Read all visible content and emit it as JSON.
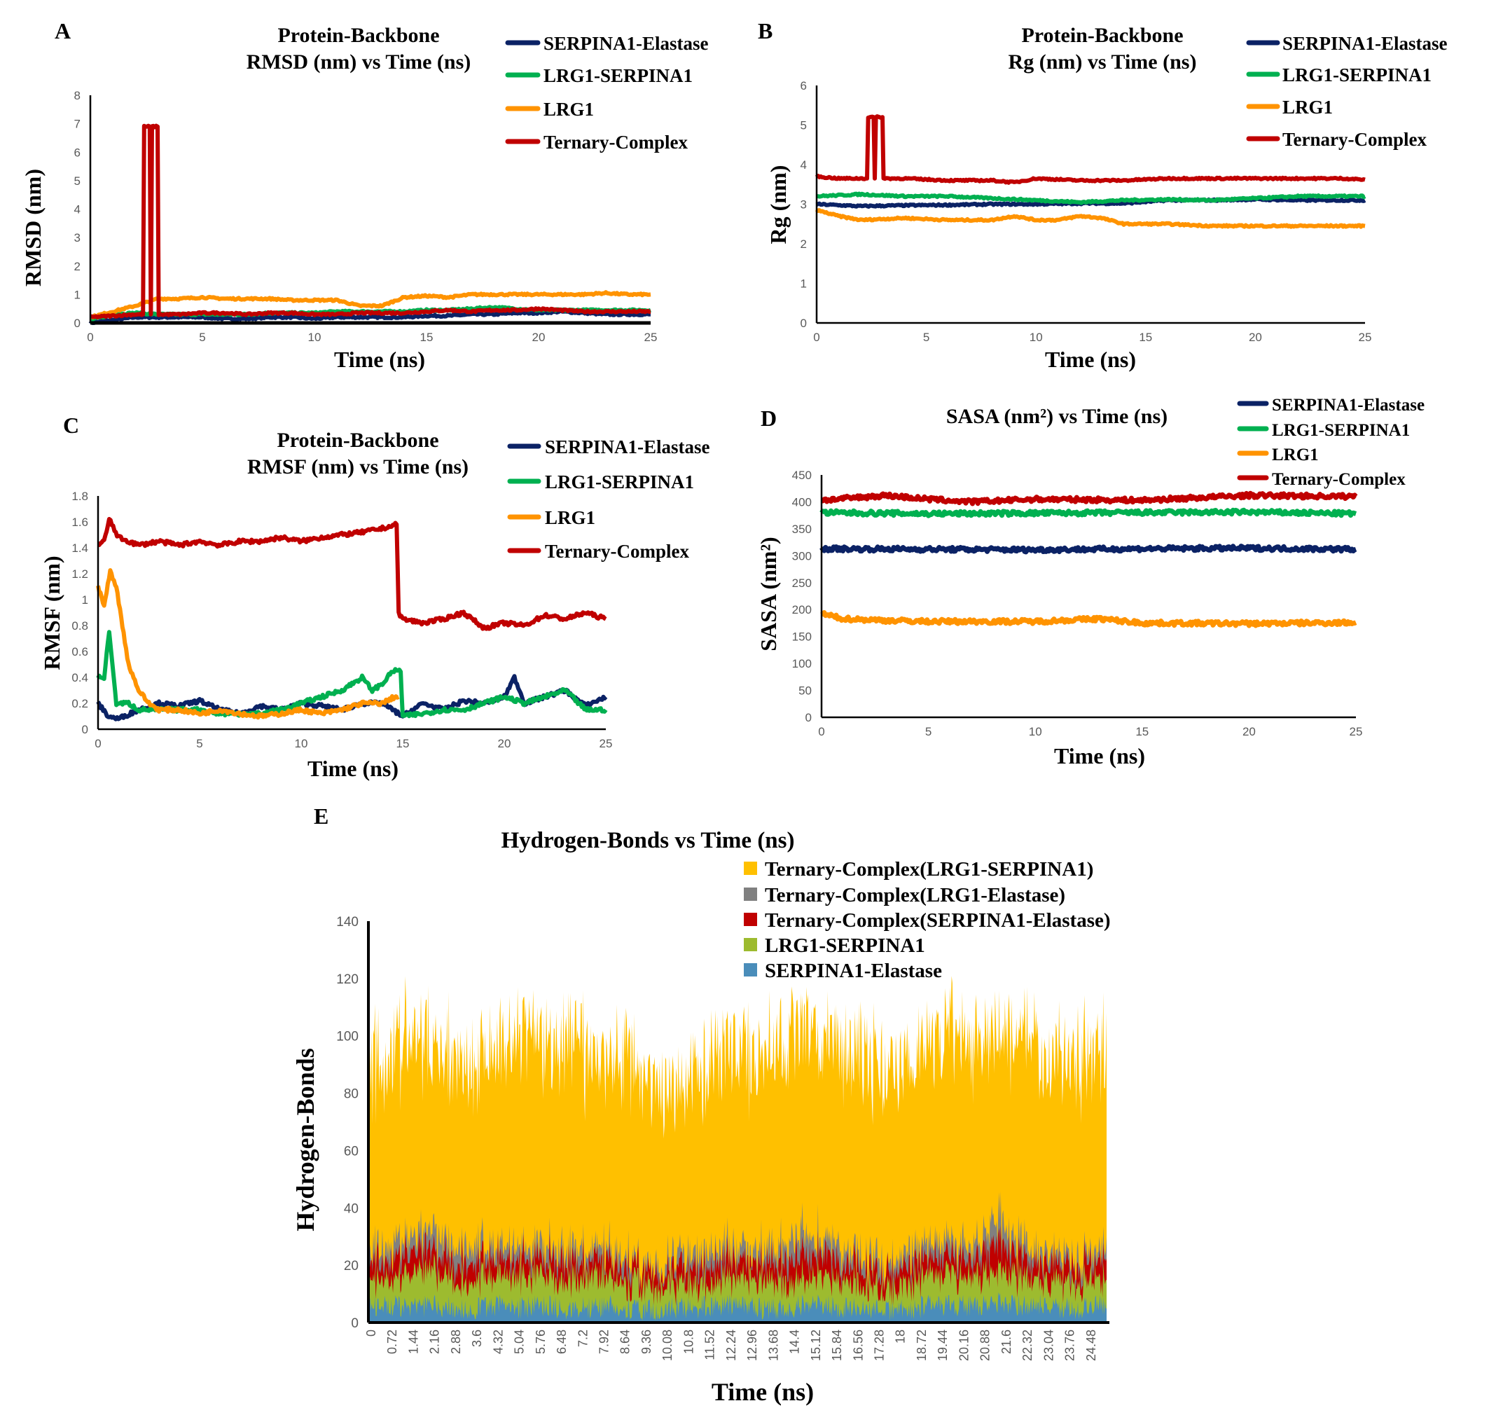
{
  "chart_data": [
    {
      "id": "A",
      "type": "line",
      "panel_label": "A",
      "title_line1": "Protein-Backbone",
      "title_line2": "RMSD (nm) vs Time (ns)",
      "xlabel": "Time (ns)",
      "ylabel": "RMSD (nm)",
      "xlim": [
        0,
        25
      ],
      "ylim": [
        0,
        8
      ],
      "xticks": [
        0,
        5,
        10,
        15,
        20,
        25
      ],
      "yticks": [
        0,
        1,
        2,
        3,
        4,
        5,
        6,
        7,
        8
      ],
      "legend_position": "top-right",
      "series": [
        {
          "name": "SERPINA1-Elastase",
          "color": "#0b2265",
          "x": [
            0,
            1,
            2,
            3,
            4,
            5,
            6,
            7,
            8,
            9,
            10,
            11,
            12,
            13,
            14,
            15,
            16,
            17,
            18,
            19,
            20,
            21,
            22,
            23,
            24,
            25
          ],
          "y": [
            0,
            0.1,
            0.2,
            0.2,
            0.2,
            0.2,
            0.15,
            0.15,
            0.2,
            0.2,
            0.15,
            0.2,
            0.2,
            0.2,
            0.2,
            0.25,
            0.25,
            0.3,
            0.3,
            0.35,
            0.35,
            0.4,
            0.35,
            0.3,
            0.3,
            0.3
          ]
        },
        {
          "name": "LRG1-SERPINA1",
          "color": "#00b050",
          "x": [
            0,
            1,
            2,
            3,
            4,
            5,
            6,
            7,
            8,
            9,
            10,
            11,
            12,
            13,
            14,
            15,
            16,
            17,
            18,
            19,
            20,
            21,
            22,
            23,
            24,
            25
          ],
          "y": [
            0.1,
            0.3,
            0.35,
            0.3,
            0.3,
            0.3,
            0.3,
            0.3,
            0.35,
            0.35,
            0.35,
            0.4,
            0.4,
            0.4,
            0.4,
            0.45,
            0.45,
            0.5,
            0.55,
            0.5,
            0.45,
            0.45,
            0.45,
            0.45,
            0.45,
            0.45
          ]
        },
        {
          "name": "LRG1",
          "color": "#ff9300",
          "x": [
            0,
            1,
            2,
            3,
            4,
            5,
            6,
            7,
            8,
            9,
            10,
            11,
            12,
            13,
            14,
            15,
            16,
            17,
            18,
            19,
            20,
            21,
            22,
            23,
            24,
            25
          ],
          "y": [
            0.2,
            0.4,
            0.6,
            0.85,
            0.85,
            0.9,
            0.85,
            0.85,
            0.85,
            0.8,
            0.8,
            0.8,
            0.6,
            0.6,
            0.9,
            0.95,
            0.9,
            1.0,
            1.0,
            1.0,
            1.0,
            1.0,
            1.0,
            1.05,
            1.0,
            1.0
          ]
        },
        {
          "name": "Ternary-Complex",
          "color": "#c00000",
          "x": [
            0,
            1,
            2,
            2.35,
            2.4,
            2.65,
            2.7,
            2.75,
            3.0,
            3.05,
            4,
            5,
            6,
            7,
            8,
            9,
            10,
            11,
            12,
            13,
            14,
            15,
            16,
            17,
            18,
            19,
            20,
            21,
            22,
            23,
            24,
            25
          ],
          "y": [
            0.2,
            0.25,
            0.3,
            0.3,
            6.9,
            6.9,
            0.3,
            6.9,
            6.9,
            0.3,
            0.3,
            0.35,
            0.35,
            0.3,
            0.35,
            0.35,
            0.3,
            0.3,
            0.35,
            0.35,
            0.35,
            0.4,
            0.45,
            0.4,
            0.45,
            0.45,
            0.5,
            0.45,
            0.4,
            0.4,
            0.4,
            0.4
          ]
        }
      ]
    },
    {
      "id": "B",
      "type": "line",
      "panel_label": "B",
      "title_line1": "Protein-Backbone",
      "title_line2": "Rg (nm) vs Time (ns)",
      "xlabel": "Time (ns)",
      "ylabel": "Rg (nm)",
      "xlim": [
        0,
        25
      ],
      "ylim": [
        0,
        6
      ],
      "xticks": [
        0,
        5,
        10,
        15,
        20,
        25
      ],
      "yticks": [
        0,
        1,
        2,
        3,
        4,
        5,
        6
      ],
      "legend_position": "top-right",
      "series": [
        {
          "name": "SERPINA1-Elastase",
          "color": "#0b2265",
          "x": [
            0,
            2,
            4,
            6,
            8,
            10,
            12,
            14,
            16,
            18,
            20,
            22,
            24,
            25
          ],
          "y": [
            3.0,
            2.95,
            2.97,
            2.98,
            3.0,
            3.0,
            3.02,
            3.02,
            3.1,
            3.1,
            3.12,
            3.1,
            3.1,
            3.1
          ]
        },
        {
          "name": "LRG1-SERPINA1",
          "color": "#00b050",
          "x": [
            0,
            2,
            4,
            6,
            8,
            10,
            12,
            14,
            16,
            18,
            20,
            22,
            24,
            25
          ],
          "y": [
            3.2,
            3.25,
            3.2,
            3.2,
            3.15,
            3.1,
            3.05,
            3.1,
            3.12,
            3.1,
            3.15,
            3.2,
            3.2,
            3.2
          ]
        },
        {
          "name": "LRG1",
          "color": "#ff9300",
          "x": [
            0,
            1,
            2,
            4,
            6,
            8,
            9,
            10,
            11,
            12,
            13,
            14,
            16,
            18,
            20,
            22,
            24,
            25
          ],
          "y": [
            2.85,
            2.7,
            2.6,
            2.65,
            2.6,
            2.6,
            2.7,
            2.6,
            2.6,
            2.7,
            2.65,
            2.5,
            2.5,
            2.45,
            2.45,
            2.45,
            2.45,
            2.45
          ]
        },
        {
          "name": "Ternary-Complex",
          "color": "#c00000",
          "x": [
            0,
            1,
            2,
            2.3,
            2.35,
            2.6,
            2.65,
            2.7,
            3.0,
            3.05,
            4,
            6,
            8,
            9,
            10,
            12,
            14,
            16,
            18,
            20,
            22,
            24,
            25
          ],
          "y": [
            3.7,
            3.65,
            3.65,
            3.65,
            5.2,
            5.2,
            3.65,
            5.2,
            5.2,
            3.65,
            3.65,
            3.6,
            3.6,
            3.55,
            3.65,
            3.6,
            3.6,
            3.65,
            3.65,
            3.65,
            3.65,
            3.65,
            3.62
          ]
        }
      ]
    },
    {
      "id": "C",
      "type": "line",
      "panel_label": "C",
      "title_line1": "Protein-Backbone",
      "title_line2": "RMSF (nm) vs Time (ns)",
      "xlabel": "Time (ns)",
      "ylabel": "RMSF (nm)",
      "xlim": [
        0,
        25
      ],
      "ylim": [
        0,
        1.8
      ],
      "xticks": [
        0,
        5,
        10,
        15,
        20,
        25
      ],
      "yticks": [
        0,
        0.2,
        0.4,
        0.6,
        0.8,
        1,
        1.2,
        1.4,
        1.6,
        1.8
      ],
      "legend_position": "top-right",
      "series": [
        {
          "name": "SERPINA1-Elastase",
          "color": "#0b2265",
          "x": [
            0,
            0.5,
            1,
            2,
            3,
            4,
            5,
            6,
            7,
            8,
            9,
            10,
            11,
            12,
            13,
            14,
            15,
            16,
            17,
            18,
            19,
            20,
            20.5,
            21,
            22,
            23,
            24,
            25
          ],
          "y": [
            0.2,
            0.1,
            0.08,
            0.15,
            0.2,
            0.18,
            0.22,
            0.15,
            0.12,
            0.18,
            0.15,
            0.2,
            0.18,
            0.15,
            0.2,
            0.2,
            0.1,
            0.2,
            0.15,
            0.22,
            0.2,
            0.25,
            0.4,
            0.2,
            0.25,
            0.3,
            0.18,
            0.25
          ]
        },
        {
          "name": "LRG1-SERPINA1",
          "color": "#00b050",
          "x": [
            0,
            0.3,
            0.55,
            0.9,
            1.5,
            2,
            3,
            4,
            5,
            6,
            7,
            8,
            9,
            10,
            11,
            12,
            13,
            13.5,
            14,
            14.5,
            14.9,
            15,
            16,
            17,
            18,
            19,
            20,
            21,
            22,
            23,
            24,
            25
          ],
          "y": [
            0.4,
            0.4,
            0.75,
            0.2,
            0.2,
            0.15,
            0.15,
            0.15,
            0.15,
            0.12,
            0.12,
            0.12,
            0.15,
            0.2,
            0.25,
            0.3,
            0.4,
            0.3,
            0.35,
            0.45,
            0.45,
            0.1,
            0.12,
            0.15,
            0.15,
            0.2,
            0.25,
            0.2,
            0.25,
            0.3,
            0.15,
            0.15
          ]
        },
        {
          "name": "LRG1",
          "color": "#ff9300",
          "x": [
            0,
            0.3,
            0.6,
            0.9,
            1.2,
            1.5,
            2,
            2.5,
            3,
            4,
            5,
            6,
            7,
            8,
            9,
            10,
            11,
            12,
            13,
            14,
            14.6,
            14.8
          ],
          "y": [
            1.1,
            0.95,
            1.22,
            1.1,
            0.8,
            0.5,
            0.3,
            0.2,
            0.15,
            0.15,
            0.12,
            0.15,
            0.12,
            0.1,
            0.12,
            0.15,
            0.12,
            0.15,
            0.2,
            0.2,
            0.25,
            0.25
          ]
        },
        {
          "name": "Ternary-Complex",
          "color": "#c00000",
          "x": [
            0,
            0.3,
            0.55,
            1,
            2,
            3,
            4,
            5,
            6,
            7,
            8,
            9,
            10,
            11,
            12,
            13,
            14,
            14.7,
            14.8,
            15,
            16,
            17,
            18,
            19,
            20,
            21,
            22,
            23,
            24,
            25
          ],
          "y": [
            1.42,
            1.45,
            1.62,
            1.48,
            1.42,
            1.45,
            1.42,
            1.45,
            1.42,
            1.45,
            1.45,
            1.48,
            1.45,
            1.48,
            1.5,
            1.52,
            1.55,
            1.58,
            0.9,
            0.85,
            0.82,
            0.85,
            0.9,
            0.78,
            0.82,
            0.8,
            0.88,
            0.85,
            0.9,
            0.85
          ]
        }
      ]
    },
    {
      "id": "D",
      "type": "line",
      "panel_label": "D",
      "title_line1": "SASA (nm²) vs Time (ns)",
      "xlabel": "Time (ns)",
      "ylabel": "SASA (nm²)",
      "xlim": [
        0,
        25
      ],
      "ylim": [
        0,
        450
      ],
      "xticks": [
        0,
        5,
        10,
        15,
        20,
        25
      ],
      "yticks": [
        0,
        50,
        100,
        150,
        200,
        250,
        300,
        350,
        400,
        450
      ],
      "legend_position": "top-right",
      "series": [
        {
          "name": "SERPINA1-Elastase",
          "color": "#0b2265",
          "x": [
            0,
            5,
            10,
            15,
            20,
            25
          ],
          "y": [
            313,
            312,
            311,
            313,
            314,
            312
          ]
        },
        {
          "name": "LRG1-SERPINA1",
          "color": "#00b050",
          "x": [
            0,
            5,
            10,
            15,
            20,
            25
          ],
          "y": [
            380,
            378,
            379,
            380,
            381,
            378
          ]
        },
        {
          "name": "LRG1",
          "color": "#ff9300",
          "x": [
            0,
            1,
            3,
            5,
            10,
            13,
            15,
            20,
            25
          ],
          "y": [
            192,
            183,
            180,
            178,
            178,
            183,
            175,
            174,
            176
          ]
        },
        {
          "name": "Ternary-Complex",
          "color": "#c00000",
          "x": [
            0,
            3,
            5,
            7,
            10,
            15,
            20,
            25
          ],
          "y": [
            403,
            412,
            405,
            400,
            405,
            403,
            412,
            410
          ]
        }
      ]
    },
    {
      "id": "E",
      "type": "area",
      "stacked": true,
      "panel_label": "E",
      "title": "Hydrogen-Bonds vs Time (ns)",
      "xlabel": "Time (ns)",
      "ylabel": "Hydrogen-Bonds",
      "ylim": [
        0,
        140
      ],
      "yticks": [
        0,
        20,
        40,
        60,
        80,
        100,
        120,
        140
      ],
      "categories": [
        "0",
        "0.72",
        "1.44",
        "2.16",
        "2.88",
        "3.6",
        "4.32",
        "5.04",
        "5.76",
        "6.48",
        "7.2",
        "7.92",
        "8.64",
        "9.36",
        "10.08",
        "10.8",
        "11.52",
        "12.24",
        "12.96",
        "13.68",
        "14.4",
        "15.12",
        "15.84",
        "16.56",
        "17.28",
        "18",
        "18.72",
        "19.44",
        "20.16",
        "20.88",
        "21.6",
        "22.32",
        "23.04",
        "23.76",
        "24.48"
      ],
      "legend_position": "top-right",
      "series": [
        {
          "name": "SERPINA1-Elastase",
          "color": "#4a8dba",
          "values": [
            6,
            6,
            5,
            6,
            5,
            5,
            6,
            5,
            6,
            5,
            5,
            6,
            5,
            4,
            5,
            5,
            6,
            6,
            5,
            5,
            6,
            6,
            5,
            5,
            4,
            5,
            6,
            6,
            6,
            7,
            6,
            6,
            5,
            5,
            6
          ]
        },
        {
          "name": "LRG1-SERPINA1",
          "color": "#9dbb2f",
          "values": [
            10,
            10,
            11,
            12,
            10,
            10,
            10,
            11,
            10,
            10,
            10,
            10,
            9,
            8,
            8,
            8,
            9,
            9,
            9,
            9,
            10,
            10,
            9,
            8,
            7,
            9,
            10,
            10,
            10,
            12,
            10,
            9,
            9,
            9,
            9
          ]
        },
        {
          "name": "Ternary-Complex(SERPINA1-Elastase)",
          "color": "#c00000",
          "values": [
            6,
            6,
            7,
            7,
            6,
            6,
            6,
            6,
            6,
            6,
            5,
            6,
            5,
            5,
            5,
            6,
            6,
            6,
            6,
            6,
            8,
            7,
            6,
            6,
            5,
            6,
            6,
            6,
            6,
            10,
            6,
            6,
            6,
            5,
            6
          ]
        },
        {
          "name": "Ternary-Complex(LRG1-Elastase)",
          "color": "#808080",
          "values": [
            4,
            5,
            6,
            8,
            6,
            5,
            5,
            5,
            5,
            4,
            4,
            4,
            3,
            3,
            4,
            5,
            5,
            5,
            5,
            5,
            8,
            5,
            5,
            4,
            4,
            5,
            6,
            5,
            5,
            9,
            5,
            4,
            4,
            4,
            4
          ]
        },
        {
          "name": "Ternary-Complex(LRG1-SERPINA1)",
          "color": "#ffc000",
          "values": [
            64,
            68,
            70,
            66,
            65,
            65,
            70,
            74,
            72,
            70,
            68,
            68,
            70,
            65,
            62,
            66,
            68,
            70,
            66,
            68,
            70,
            74,
            70,
            70,
            68,
            64,
            70,
            74,
            70,
            66,
            72,
            70,
            68,
            68,
            70
          ]
        }
      ]
    }
  ]
}
